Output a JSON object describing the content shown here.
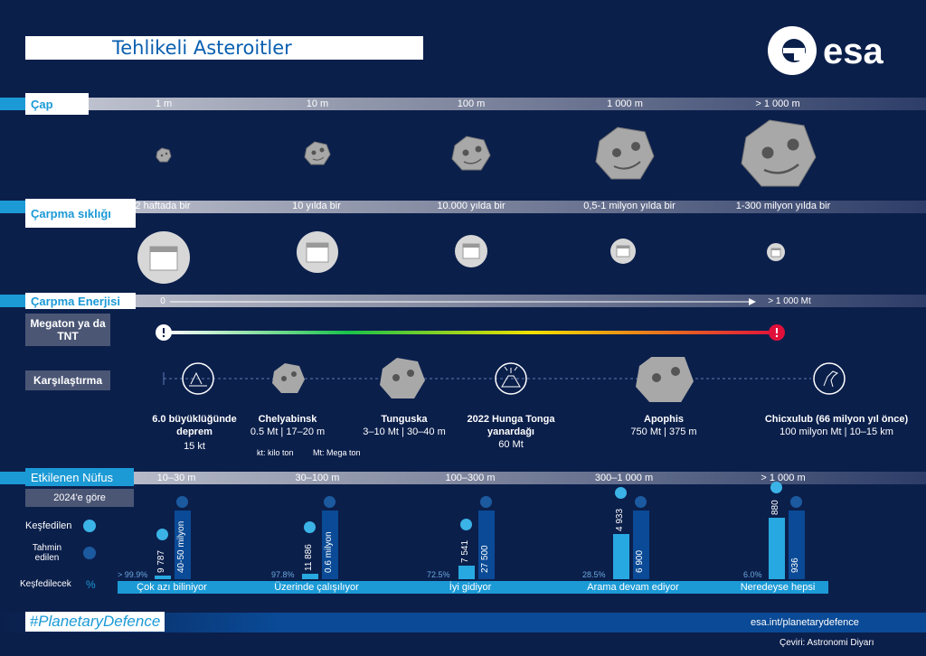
{
  "title": "Tehlikeli Asteroitler",
  "logo_text": "esa",
  "sections": {
    "diameter": {
      "label": "Çap",
      "sizes": [
        "1 m",
        "10 m",
        "100 m",
        "1 000 m",
        "> 1 000 m"
      ]
    },
    "frequency": {
      "label": "Çarpma sıklığı",
      "values": [
        "2 haftada bir",
        "10 yılda bir",
        "10.000 yılda bir",
        "0,5-1 milyon yılda bir",
        "1-300 milyon yılda bir"
      ]
    },
    "energy": {
      "label": "Çarpma Enerjisi",
      "axis_start": "0",
      "axis_end": "> 1 000 Mt",
      "unit_box": "Megaton ya da TNT"
    },
    "comparison": {
      "label": "Karşılaştırma",
      "items": [
        {
          "name": "6.0 büyüklüğünde deprem",
          "value": "15 kt"
        },
        {
          "name": "Chelyabinsk",
          "value": "0.5 Mt | 17–20 m"
        },
        {
          "name": "Tunguska",
          "value": "3–10 Mt | 30–40 m"
        },
        {
          "name": "2022 Hunga Tonga yanardağı",
          "value": "60 Mt"
        },
        {
          "name": "Apophis",
          "value": "750 Mt | 375 m"
        },
        {
          "name": "Chicxulub  (66 milyon yıl önce)",
          "value": "100 milyon Mt | 10–15 km"
        }
      ],
      "note_kt": "kt: kilo ton",
      "note_mt": "Mt: Mega ton"
    },
    "population": {
      "label": "Etkilenen Nüfus",
      "sublabel": "2024'e göre",
      "ranges": [
        "10–30 m",
        "30–100 m",
        "100–300 m",
        "300–1 000 m",
        "> 1 000 m"
      ],
      "legend_discovered": "Keşfedilen",
      "legend_estimated": "Tahmin edilen",
      "legend_to_discover": "Keşfedilecek",
      "legend_pct_symbol": "%",
      "groups": [
        {
          "discovered": "9 787",
          "estimated": "40-50 milyon",
          "pct": "> 99.9%",
          "status": "Çok azı biliniyor",
          "discovered_frac": 0.05,
          "estimated_frac": 1.0
        },
        {
          "discovered": "11 886",
          "estimated": "0.6 milyon",
          "pct": "97.8%",
          "status": "Üzerinde çalışılıyor",
          "discovered_frac": 0.08,
          "estimated_frac": 1.0
        },
        {
          "discovered": "7 541",
          "estimated": "27 500",
          "pct": "72.5%",
          "status": "İyi gidiyor",
          "discovered_frac": 0.2,
          "estimated_frac": 1.0
        },
        {
          "discovered": "4 933",
          "estimated": "6 900",
          "pct": "28.5%",
          "status": "Arama devam ediyor",
          "discovered_frac": 0.66,
          "estimated_frac": 1.0
        },
        {
          "discovered": "880",
          "estimated": "936",
          "pct": "6.0%",
          "status": "Neredeyse hepsi",
          "discovered_frac": 0.9,
          "estimated_frac": 1.0
        }
      ]
    }
  },
  "footer": {
    "hashtag": "#PlanetaryDefence",
    "url": "esa.int/planetarydefence",
    "translation_credit": "Çeviri: Astronomi Diyarı"
  },
  "colors": {
    "background": "#0b1f4b",
    "accent_blue": "#1b9ad6",
    "dark_bar": "#0a4a96",
    "warning_red": "#e0103a"
  }
}
